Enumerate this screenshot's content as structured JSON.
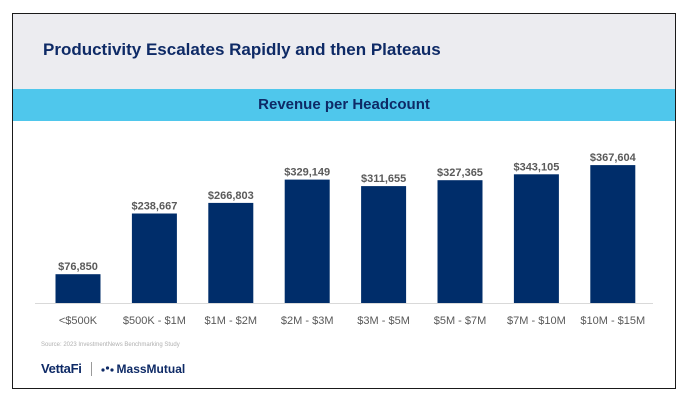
{
  "slide": {
    "title": "Productivity Escalates Rapidly and then Plateaus",
    "source": "Source: 2023 InvestmentNews Benchmarking Study",
    "logos": {
      "vettafi": "VettaFi",
      "massmutual": "MassMutual"
    }
  },
  "colors": {
    "bar": "#002d6a",
    "banner": "#4fc7ec",
    "title": "#0e2a66"
  },
  "chart_data": {
    "type": "bar",
    "title": "Revenue per Headcount",
    "xlabel": "",
    "ylabel": "",
    "categories": [
      "<$500K",
      "$500K - $1M",
      "$1M - $2M",
      "$2M - $3M",
      "$3M - $5M",
      "$5M - $7M",
      "$7M - $10M",
      "$10M - $15M"
    ],
    "values": [
      76850,
      238667,
      266803,
      329149,
      311655,
      327365,
      343105,
      367604
    ],
    "value_labels": [
      "$76,850",
      "$238,667",
      "$266,803",
      "$329,149",
      "$311,655",
      "$327,365",
      "$343,105",
      "$367,604"
    ],
    "ylim": [
      0,
      400000
    ],
    "grid": false,
    "legend": "none"
  }
}
